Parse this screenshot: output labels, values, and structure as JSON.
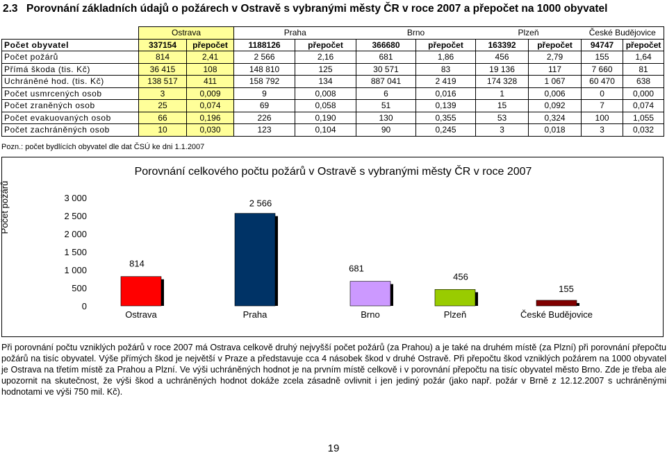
{
  "heading": {
    "number": "2.3",
    "title": "Porovnání základních údajů o požárech v Ostravě s vybranými městy ČR v roce 2007 a přepočet na 1000 obyvatel"
  },
  "table": {
    "cities": [
      "Ostrava",
      "Praha",
      "Brno",
      "Plzeň",
      "České Budějovice"
    ],
    "rows": [
      {
        "label": "Počet obyvatel",
        "cells": [
          "337154",
          "přepočet",
          "1188126",
          "přepočet",
          "366680",
          "přepočet",
          "163392",
          "přepočet",
          "94747",
          "přepočet"
        ]
      },
      {
        "label": "Počet požárů",
        "cells": [
          "814",
          "2,41",
          "2 566",
          "2,16",
          "681",
          "1,86",
          "456",
          "2,79",
          "155",
          "1,64"
        ]
      },
      {
        "label": "Přímá škoda (tis. Kč)",
        "cells": [
          "36 415",
          "108",
          "148 810",
          "125",
          "30 571",
          "83",
          "19 136",
          "117",
          "7 660",
          "81"
        ]
      },
      {
        "label": "Uchráněné hod. (tis. Kč)",
        "cells": [
          "138 517",
          "411",
          "158 792",
          "134",
          "887 041",
          "2 419",
          "174 328",
          "1 067",
          "60 470",
          "638"
        ]
      },
      {
        "label": "Počet usmrcených osob",
        "cells": [
          "3",
          "0,009",
          "9",
          "0,008",
          "6",
          "0,016",
          "1",
          "0,006",
          "0",
          "0,000"
        ]
      },
      {
        "label": "Počet zraněných osob",
        "cells": [
          "25",
          "0,074",
          "69",
          "0,058",
          "51",
          "0,139",
          "15",
          "0,092",
          "7",
          "0,074"
        ]
      },
      {
        "label": "Počet evakuovaných osob",
        "cells": [
          "66",
          "0,196",
          "226",
          "0,190",
          "130",
          "0,355",
          "53",
          "0,324",
          "100",
          "1,055"
        ]
      },
      {
        "label": "Počet zachráněných osob",
        "cells": [
          "10",
          "0,030",
          "123",
          "0,104",
          "90",
          "0,245",
          "3",
          "0,018",
          "3",
          "0,032"
        ]
      }
    ]
  },
  "note": "Pozn.: počet bydlících obyvatel dle dat ČSÚ ke dni 1.1.2007",
  "chart_data": {
    "type": "bar",
    "title": "Porovnání celkového počtu požárů v Ostravě s vybranými městy ČR v roce 2007",
    "ylabel": "Počet požárů",
    "xlabel": "",
    "categories": [
      "Ostrava",
      "Praha",
      "Brno",
      "Plzeň",
      "České Budějovice"
    ],
    "values": [
      814,
      2566,
      681,
      456,
      155
    ],
    "value_labels": [
      "814",
      "2 566",
      "681",
      "456",
      "155"
    ],
    "ylim": [
      0,
      3000
    ],
    "yticks": [
      0,
      500,
      1000,
      1500,
      2000,
      2500,
      3000
    ],
    "ytick_labels": [
      "0",
      "500",
      "1 000",
      "1 500",
      "2 000",
      "2 500",
      "3 000"
    ],
    "colors": [
      "#ff0000",
      "#003366",
      "#cc99ff",
      "#99cc00",
      "#800000"
    ],
    "grid": false,
    "legend": "none"
  },
  "paragraph": "Při porovnání počtu vzniklých požárů v roce 2007 má Ostrava celkově druhý nejvyšší počet požárů (za Prahou) a je také na druhém místě (za Plzní) při porovnání přepočtu požárů na tisíc obyvatel. Výše přímých škod je největší v Praze a představuje cca 4 násobek škod v druhé Ostravě. Při přepočtu škod vzniklých požárem na 1000 obyvatel je Ostrava na třetím místě za Prahou a Plzní. Ve výši uchráněných hodnot je na prvním místě celkově i v porovnání přepočtu na tisíc obyvatel město Brno. Zde je třeba ale upozornit na skutečnost, že výši škod a uchráněných hodnot dokáže zcela zásadně ovlivnit i jen jediný požár (jako např. požár v Brně z 12.12.2007 s uchráněnými hodnotami ve výši 750 mil. Kč).",
  "page_number": "19"
}
